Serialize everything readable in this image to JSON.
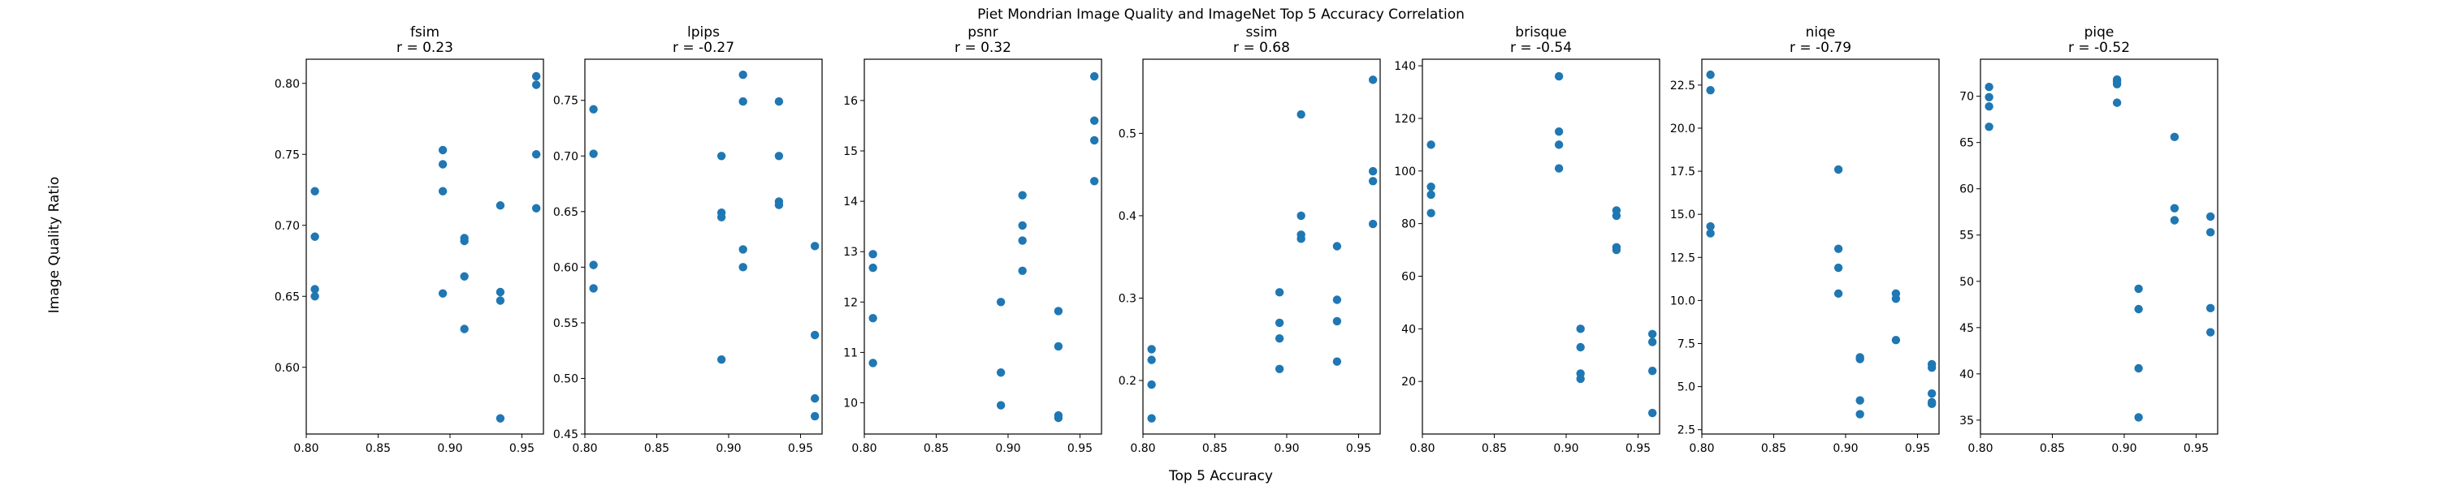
{
  "figure": {
    "suptitle": "Piet Mondrian Image Quality and ImageNet Top 5 Accuracy Correlation",
    "xlabel": "Top 5 Accuracy",
    "ylabel": "Image Quality Ratio",
    "marker_color": "#1f77b4"
  },
  "chart_data": [
    {
      "type": "scatter",
      "title": "fsim",
      "subtitle": "r = 0.23",
      "xlim": [
        0.8,
        0.965
      ],
      "ylim": [
        0.553,
        0.817
      ],
      "xticks": [
        "0.80",
        "0.85",
        "0.90",
        "0.95"
      ],
      "yticks": [
        "0.60",
        "0.65",
        "0.70",
        "0.75",
        "0.80"
      ],
      "x": [
        0.806,
        0.806,
        0.806,
        0.806,
        0.895,
        0.895,
        0.895,
        0.895,
        0.91,
        0.91,
        0.91,
        0.91,
        0.935,
        0.935,
        0.935,
        0.935,
        0.96,
        0.96,
        0.96,
        0.96
      ],
      "y": [
        0.724,
        0.692,
        0.655,
        0.65,
        0.753,
        0.743,
        0.724,
        0.652,
        0.691,
        0.689,
        0.664,
        0.627,
        0.714,
        0.653,
        0.647,
        0.564,
        0.805,
        0.799,
        0.75,
        0.712
      ]
    },
    {
      "type": "scatter",
      "title": "lpips",
      "subtitle": "r = -0.27",
      "xlim": [
        0.8,
        0.965
      ],
      "ylim": [
        0.45,
        0.787
      ],
      "xticks": [
        "0.80",
        "0.85",
        "0.90",
        "0.95"
      ],
      "yticks": [
        "0.45",
        "0.50",
        "0.55",
        "0.60",
        "0.65",
        "0.70",
        "0.75"
      ],
      "x": [
        0.806,
        0.806,
        0.806,
        0.806,
        0.895,
        0.895,
        0.895,
        0.895,
        0.91,
        0.91,
        0.91,
        0.91,
        0.935,
        0.935,
        0.935,
        0.935,
        0.96,
        0.96,
        0.96,
        0.96
      ],
      "y": [
        0.742,
        0.702,
        0.602,
        0.581,
        0.7,
        0.649,
        0.645,
        0.517,
        0.773,
        0.749,
        0.616,
        0.6,
        0.749,
        0.7,
        0.659,
        0.656,
        0.619,
        0.539,
        0.482,
        0.466
      ]
    },
    {
      "type": "scatter",
      "title": "psnr",
      "subtitle": "r = 0.32",
      "xlim": [
        0.8,
        0.965
      ],
      "ylim": [
        9.38,
        16.82
      ],
      "xticks": [
        "0.80",
        "0.85",
        "0.90",
        "0.95"
      ],
      "yticks": [
        "10",
        "11",
        "12",
        "13",
        "14",
        "15",
        "16"
      ],
      "x": [
        0.806,
        0.806,
        0.806,
        0.806,
        0.895,
        0.895,
        0.895,
        0.91,
        0.91,
        0.91,
        0.91,
        0.935,
        0.935,
        0.935,
        0.935,
        0.96,
        0.96,
        0.96,
        0.96
      ],
      "y": [
        12.95,
        12.68,
        11.68,
        10.79,
        12.0,
        10.6,
        9.95,
        14.12,
        13.52,
        13.22,
        12.62,
        11.82,
        11.12,
        9.75,
        9.7,
        16.48,
        15.6,
        15.21,
        14.4
      ]
    },
    {
      "type": "scatter",
      "title": "ssim",
      "subtitle": "r = 0.68",
      "xlim": [
        0.8,
        0.965
      ],
      "ylim": [
        0.135,
        0.59
      ],
      "xticks": [
        "0.80",
        "0.85",
        "0.90",
        "0.95"
      ],
      "yticks": [
        "0.2",
        "0.3",
        "0.4",
        "0.5"
      ],
      "x": [
        0.806,
        0.806,
        0.806,
        0.806,
        0.895,
        0.895,
        0.895,
        0.895,
        0.91,
        0.91,
        0.91,
        0.91,
        0.935,
        0.935,
        0.935,
        0.935,
        0.96,
        0.96,
        0.96,
        0.96
      ],
      "y": [
        0.238,
        0.225,
        0.195,
        0.154,
        0.307,
        0.27,
        0.251,
        0.214,
        0.523,
        0.4,
        0.377,
        0.372,
        0.363,
        0.298,
        0.272,
        0.223,
        0.565,
        0.454,
        0.442,
        0.39
      ]
    },
    {
      "type": "scatter",
      "title": "brisque",
      "subtitle": "r = -0.54",
      "xlim": [
        0.8,
        0.965
      ],
      "ylim": [
        0,
        142.5
      ],
      "xticks": [
        "0.80",
        "0.85",
        "0.90",
        "0.95"
      ],
      "yticks": [
        "20",
        "40",
        "60",
        "80",
        "100",
        "120",
        "140"
      ],
      "x": [
        0.806,
        0.806,
        0.806,
        0.806,
        0.895,
        0.895,
        0.895,
        0.895,
        0.91,
        0.91,
        0.91,
        0.91,
        0.935,
        0.935,
        0.935,
        0.935,
        0.96,
        0.96,
        0.96,
        0.96
      ],
      "y": [
        110,
        94,
        91,
        84,
        136,
        115,
        110,
        101,
        40,
        33,
        23,
        21,
        85,
        83,
        71,
        70,
        38,
        35,
        24,
        8
      ]
    },
    {
      "type": "scatter",
      "title": "niqe",
      "subtitle": "r = -0.79",
      "xlim": [
        0.8,
        0.965
      ],
      "ylim": [
        2.25,
        24.0
      ],
      "xticks": [
        "0.80",
        "0.85",
        "0.90",
        "0.95"
      ],
      "yticks": [
        "2.5",
        "5.0",
        "7.5",
        "10.0",
        "12.5",
        "15.0",
        "17.5",
        "20.0",
        "22.5"
      ],
      "x": [
        0.806,
        0.806,
        0.806,
        0.806,
        0.895,
        0.895,
        0.895,
        0.895,
        0.91,
        0.91,
        0.91,
        0.91,
        0.935,
        0.935,
        0.935,
        0.96,
        0.96,
        0.96,
        0.96,
        0.96
      ],
      "y": [
        23.1,
        22.2,
        14.3,
        13.9,
        17.6,
        13.0,
        11.9,
        10.4,
        6.7,
        6.6,
        4.2,
        3.4,
        10.4,
        10.1,
        7.7,
        6.3,
        6.1,
        4.6,
        4.0,
        4.1
      ]
    },
    {
      "type": "scatter",
      "title": "piqe",
      "subtitle": "r = -0.52",
      "xlim": [
        0.8,
        0.965
      ],
      "ylim": [
        33.5,
        74.0
      ],
      "xticks": [
        "0.80",
        "0.85",
        "0.90",
        "0.95"
      ],
      "yticks": [
        "35",
        "40",
        "45",
        "50",
        "55",
        "60",
        "65",
        "70"
      ],
      "x": [
        0.806,
        0.806,
        0.806,
        0.806,
        0.895,
        0.895,
        0.895,
        0.895,
        0.91,
        0.91,
        0.91,
        0.91,
        0.935,
        0.935,
        0.935,
        0.96,
        0.96,
        0.96,
        0.96
      ],
      "y": [
        71.0,
        69.9,
        68.9,
        66.7,
        71.8,
        71.6,
        71.3,
        69.3,
        49.2,
        47.0,
        40.6,
        35.3,
        65.6,
        57.9,
        56.6,
        57.0,
        55.3,
        47.1,
        44.5
      ]
    }
  ]
}
